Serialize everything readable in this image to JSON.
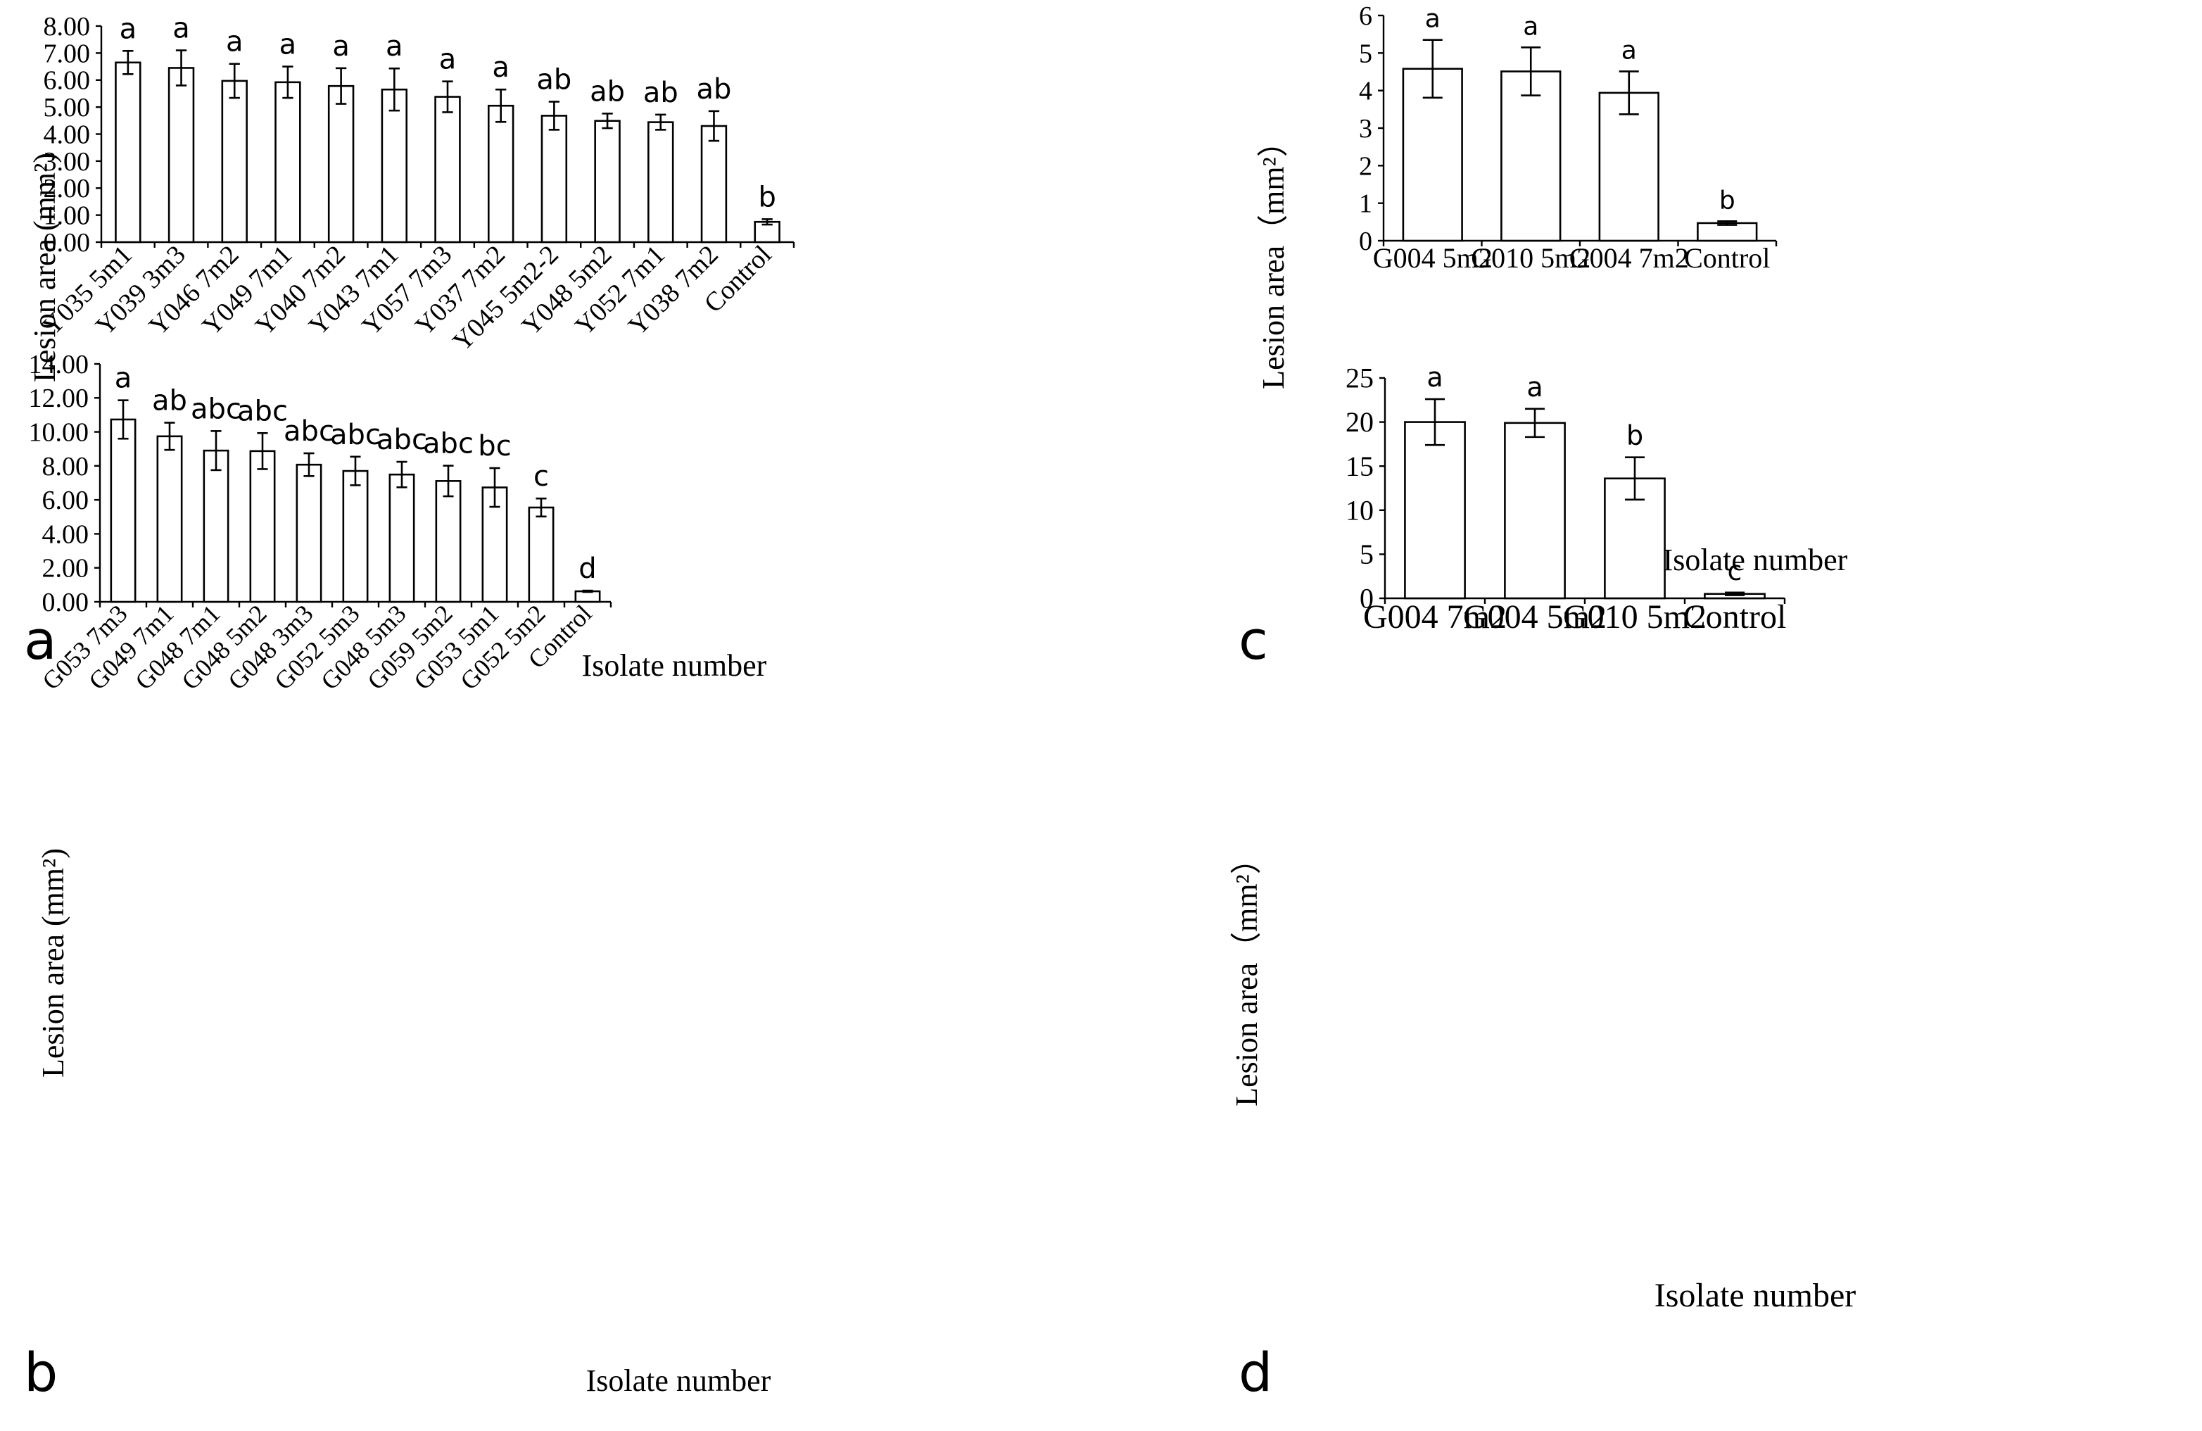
{
  "chart_data": [
    {
      "panel_label": "a",
      "type": "bar",
      "ylabel": "Lesion area (mm²)",
      "xlabel": "Isolate number",
      "ylim": [
        0,
        8
      ],
      "yticks": [
        "0.00",
        "1.00",
        "2.00",
        "3.00",
        "4.00",
        "5.00",
        "6.00",
        "7.00",
        "8.00"
      ],
      "categories": [
        "Y035 5m1",
        "Y039 3m3",
        "Y046 7m2",
        "Y049 7m1",
        "Y040 7m2",
        "Y043 7m1",
        "Y057 7m3",
        "Y037 7m2",
        "Y045 5m2-2",
        "Y048 5m2",
        "Y052 7m1",
        "Y038 7m2",
        "Control"
      ],
      "values": [
        6.65,
        6.45,
        5.97,
        5.92,
        5.78,
        5.65,
        5.38,
        5.05,
        4.68,
        4.49,
        4.44,
        4.3,
        0.75
      ],
      "errors": [
        0.43,
        0.65,
        0.63,
        0.58,
        0.66,
        0.78,
        0.57,
        0.6,
        0.52,
        0.27,
        0.28,
        0.55,
        0.1
      ],
      "letters": [
        "a",
        "a",
        "a",
        "a",
        "a",
        "a",
        "a",
        "a",
        "ab",
        "ab",
        "ab",
        "ab",
        "b"
      ]
    },
    {
      "panel_label": "b",
      "type": "bar",
      "ylabel": "Lesion area (mm²)",
      "xlabel": "Isolate number",
      "ylim": [
        0,
        14
      ],
      "yticks": [
        "0.00",
        "2.00",
        "4.00",
        "6.00",
        "8.00",
        "10.00",
        "12.00",
        "14.00"
      ],
      "categories": [
        "G053 7m3",
        "G049 7m1",
        "G048 7m1",
        "G048 5m2",
        "G048 3m3",
        "G052 5m3",
        "G048 5m3",
        "G059 5m2",
        "G053 5m1",
        "G052 5m2",
        "Control"
      ],
      "values": [
        10.73,
        9.74,
        8.9,
        8.87,
        8.07,
        7.7,
        7.49,
        7.11,
        6.73,
        5.55,
        0.62
      ],
      "errors": [
        1.13,
        0.8,
        1.15,
        1.06,
        0.67,
        0.84,
        0.75,
        0.9,
        1.14,
        0.53,
        0.04
      ],
      "letters": [
        "a",
        "ab",
        "abc",
        "abc",
        "abc",
        "abc",
        "abc",
        "abc",
        "bc",
        "c",
        "d"
      ]
    },
    {
      "panel_label": "c",
      "type": "bar",
      "ylabel": "Lesion area（mm²）",
      "xlabel": "Isolate number",
      "ylim": [
        0,
        6
      ],
      "yticks": [
        "0",
        "1",
        "2",
        "3",
        "4",
        "5",
        "6"
      ],
      "categories": [
        "G004 5m2",
        "G010 5m2",
        "G004 7m2",
        "Control"
      ],
      "values": [
        4.58,
        4.51,
        3.94,
        0.47
      ],
      "errors": [
        0.77,
        0.64,
        0.57,
        0.05
      ],
      "letters": [
        "a",
        "a",
        "a",
        "b"
      ]
    },
    {
      "panel_label": "d",
      "type": "bar",
      "ylabel": "Lesion area（mm²）",
      "xlabel": "Isolate number",
      "ylim": [
        0,
        25
      ],
      "yticks": [
        "0",
        "5",
        "10",
        "15",
        "20",
        "25"
      ],
      "categories": [
        "G004 7m2",
        "G004 5m2",
        "G010 5m2",
        "Control"
      ],
      "values": [
        20.0,
        19.9,
        13.6,
        0.5
      ],
      "errors": [
        2.6,
        1.6,
        2.4,
        0.15
      ],
      "letters": [
        "a",
        "a",
        "b",
        "c"
      ]
    }
  ]
}
